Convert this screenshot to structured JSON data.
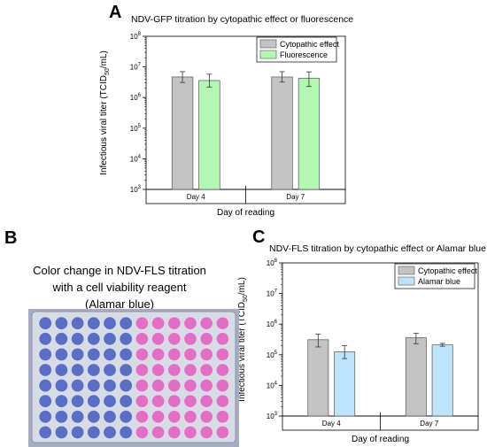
{
  "panels": {
    "a": {
      "letter": "A",
      "chart_data": {
        "type": "bar",
        "title": "NDV-GFP titration by cytopathic effect or fluorescence",
        "xlabel": "Day of reading",
        "ylabel": "Infectious viral titer (TCID",
        "ylabel_sub": "50",
        "ylabel_tail": "/mL)",
        "yscale": "log",
        "ylim": [
          1000,
          100000000
        ],
        "y_ticks": [
          {
            "base": "10",
            "exp": "3",
            "value": 1000
          },
          {
            "base": "10",
            "exp": "4",
            "value": 10000
          },
          {
            "base": "10",
            "exp": "5",
            "value": 100000
          },
          {
            "base": "10",
            "exp": "6",
            "value": 1000000
          },
          {
            "base": "10",
            "exp": "7",
            "value": 10000000
          },
          {
            "base": "10",
            "exp": "8",
            "value": 100000000
          }
        ],
        "categories": [
          "Day 4",
          "Day 7"
        ],
        "series": [
          {
            "name": "Cytopathic effect",
            "color": "#c4c4c4",
            "values": [
              4700000,
              4700000
            ],
            "err_low": [
              3100000,
              3200000
            ],
            "err_high": [
              7000000,
              7000000
            ]
          },
          {
            "name": "Fluorescence",
            "color": "#b3f7b3",
            "values": [
              3600000,
              4300000
            ],
            "err_low": [
              2200000,
              2300000
            ],
            "err_high": [
              5800000,
              6900000
            ]
          }
        ],
        "legend_position": "top-right",
        "grid": false
      }
    },
    "b": {
      "letter": "B",
      "caption_lines": [
        "Color change in NDV-FLS titration",
        "with a cell viability reagent",
        "(Alamar blue)"
      ],
      "plate": {
        "rows": 8,
        "cols": 12,
        "blue_cols": 6,
        "blue_color": "#5a6fc4",
        "pink_color": "#e070c6"
      }
    },
    "c": {
      "letter": "C",
      "chart_data": {
        "type": "bar",
        "title": "NDV-FLS titration by cytopathic effect or Alamar blue",
        "xlabel": "Day of reading",
        "ylabel": "Infectious viral titer (TCID",
        "ylabel_sub": "50",
        "ylabel_tail": "/mL)",
        "yscale": "log",
        "ylim": [
          1000,
          100000000
        ],
        "y_ticks": [
          {
            "base": "10",
            "exp": "3",
            "value": 1000
          },
          {
            "base": "10",
            "exp": "4",
            "value": 10000
          },
          {
            "base": "10",
            "exp": "5",
            "value": 100000
          },
          {
            "base": "10",
            "exp": "6",
            "value": 1000000
          },
          {
            "base": "10",
            "exp": "7",
            "value": 10000000
          },
          {
            "base": "10",
            "exp": "8",
            "value": 100000000
          }
        ],
        "categories": [
          "Day 4",
          "Day 7"
        ],
        "series": [
          {
            "name": "Cytopathic effect",
            "color": "#c4c4c4",
            "values": [
              310000,
              360000
            ],
            "err_low": [
              180000,
              230000
            ],
            "err_high": [
              470000,
              500000
            ]
          },
          {
            "name": "Alamar blue",
            "color": "#bfe3fb",
            "values": [
              125000,
              210000
            ],
            "err_low": [
              75000,
              190000
            ],
            "err_high": [
              200000,
              235000
            ]
          }
        ],
        "legend_position": "top-right",
        "grid": false
      }
    }
  }
}
